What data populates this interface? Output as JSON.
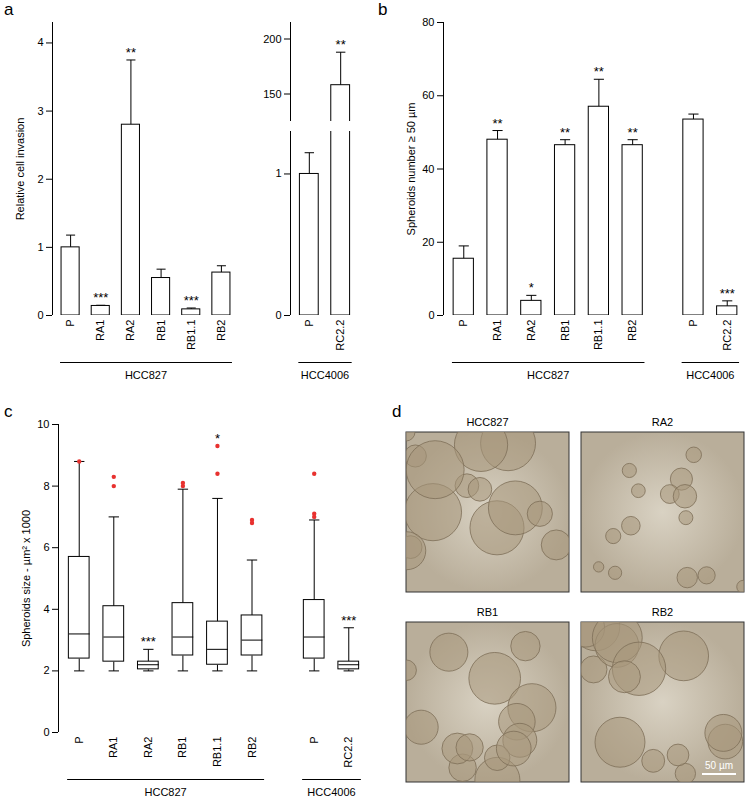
{
  "chart_data": [
    {
      "panel": "a",
      "type": "bar",
      "y_label": "Relative cell invasion",
      "color": "#ffffff",
      "ylim": [
        0,
        4.3
      ],
      "yticks": [
        0,
        1,
        2,
        3,
        4
      ],
      "groups": [
        {
          "name": "HCC827",
          "categories": [
            "P",
            "RA1",
            "RA2",
            "RB1",
            "RB1.1",
            "RB2"
          ],
          "values": [
            1.0,
            0.14,
            2.8,
            0.55,
            0.09,
            0.63
          ],
          "errors": [
            0.18,
            0.01,
            0.95,
            0.13,
            0.02,
            0.1
          ],
          "significance": [
            "",
            "***",
            "**",
            "",
            "***",
            ""
          ]
        }
      ]
    },
    {
      "panel": "a",
      "type": "bar",
      "color": "#ffffff",
      "segments": [
        {
          "ylim": [
            125,
            215
          ],
          "yticks": [
            150,
            200
          ]
        },
        {
          "ylim": [
            0,
            1.3
          ],
          "yticks": [
            0,
            1
          ]
        }
      ],
      "groups": [
        {
          "name": "HCC4006",
          "categories": [
            "P",
            "RC2.2"
          ],
          "values": [
            1.0,
            158
          ],
          "errors": [
            0.15,
            30
          ],
          "significance": [
            "",
            "**"
          ]
        }
      ]
    },
    {
      "panel": "b",
      "type": "bar",
      "y_label": "Spheroids number ≥ 50 µm",
      "color": "#ffffff",
      "ylim": [
        0,
        80
      ],
      "yticks": [
        0,
        20,
        40,
        60,
        80
      ],
      "groups": [
        {
          "name": "HCC827",
          "categories": [
            "P",
            "RA1",
            "RA2",
            "RB1",
            "RB1.1",
            "RB2"
          ],
          "values": [
            15.5,
            48,
            4,
            46.5,
            57,
            46.5
          ],
          "errors": [
            3.5,
            2.5,
            1.5,
            1.5,
            7.5,
            1.5
          ],
          "significance": [
            "",
            "**",
            "*",
            "**",
            "**",
            "**"
          ]
        },
        {
          "name": "HCC4006",
          "categories": [
            "P",
            "RC2.2"
          ],
          "values": [
            53.5,
            2.5
          ],
          "errors": [
            1.5,
            1.5
          ],
          "significance": [
            "",
            "***"
          ]
        }
      ]
    },
    {
      "panel": "c",
      "type": "box",
      "y_label": "Spheroids size - µm² x 1000",
      "color": "#ffffff",
      "ylim": [
        0,
        10
      ],
      "yticks": [
        0,
        2,
        4,
        6,
        8,
        10
      ],
      "groups": [
        {
          "name": "HCC827",
          "categories": [
            "P",
            "RA1",
            "RA2",
            "RB1",
            "RB1.1",
            "RB2"
          ],
          "boxes": [
            {
              "whisker_low": 2.0,
              "q1": 2.4,
              "median": 3.2,
              "q3": 5.7,
              "whisker_high": 8.8,
              "outliers": [
                8.8
              ]
            },
            {
              "whisker_low": 2.0,
              "q1": 2.3,
              "median": 3.1,
              "q3": 4.1,
              "whisker_high": 7.0,
              "outliers": [
                8.0,
                8.3
              ]
            },
            {
              "whisker_low": 2.0,
              "q1": 2.05,
              "median": 2.2,
              "q3": 2.3,
              "whisker_high": 2.7,
              "outliers": []
            },
            {
              "whisker_low": 2.0,
              "q1": 2.5,
              "median": 3.1,
              "q3": 4.2,
              "whisker_high": 7.9,
              "outliers": [
                8.0,
                8.1
              ]
            },
            {
              "whisker_low": 2.0,
              "q1": 2.2,
              "median": 2.7,
              "q3": 3.6,
              "whisker_high": 7.6,
              "outliers": [
                8.4,
                9.3
              ]
            },
            {
              "whisker_low": 2.0,
              "q1": 2.5,
              "median": 3.0,
              "q3": 3.8,
              "whisker_high": 5.6,
              "outliers": [
                6.8,
                6.9
              ]
            }
          ],
          "significance": [
            "",
            "",
            "***",
            "",
            "*",
            ""
          ]
        },
        {
          "name": "HCC4006",
          "categories": [
            "P",
            "RC2.2"
          ],
          "boxes": [
            {
              "whisker_low": 2.0,
              "q1": 2.4,
              "median": 3.1,
              "q3": 4.3,
              "whisker_high": 6.9,
              "outliers": [
                7.0,
                7.1,
                8.4
              ]
            },
            {
              "whisker_low": 2.0,
              "q1": 2.05,
              "median": 2.2,
              "q3": 2.3,
              "whisker_high": 3.4,
              "outliers": []
            }
          ],
          "significance": [
            "",
            "***"
          ]
        }
      ]
    }
  ],
  "image_panel": {
    "panel": "d",
    "images": [
      "HCC827",
      "RA2",
      "RB1",
      "RB2"
    ],
    "scale_bar": "50 µm"
  }
}
